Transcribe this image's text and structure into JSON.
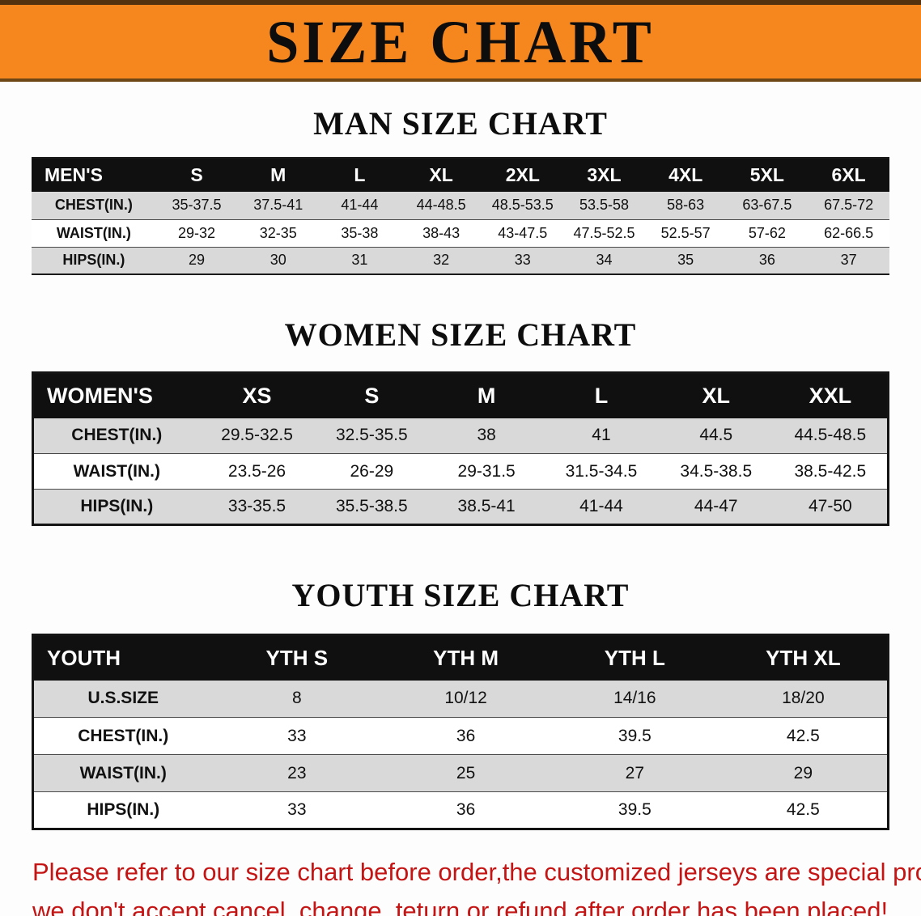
{
  "banner": {
    "title": "SIZE CHART"
  },
  "sections": [
    {
      "heading": "MAN SIZE CHART",
      "table": {
        "header": [
          "MEN'S",
          "S",
          "M",
          "L",
          "XL",
          "2XL",
          "3XL",
          "4XL",
          "5XL",
          "6XL"
        ],
        "rows": [
          {
            "label": "CHEST(IN.)",
            "values": [
              "35-37.5",
              "37.5-41",
              "41-44",
              "44-48.5",
              "48.5-53.5",
              "53.5-58",
              "58-63",
              "63-67.5",
              "67.5-72"
            ]
          },
          {
            "label": "WAIST(IN.)",
            "values": [
              "29-32",
              "32-35",
              "35-38",
              "38-43",
              "43-47.5",
              "47.5-52.5",
              "52.5-57",
              "57-62",
              "62-66.5"
            ]
          },
          {
            "label": "HIPS(IN.)",
            "values": [
              "29",
              "30",
              "31",
              "32",
              "33",
              "34",
              "35",
              "36",
              "37"
            ]
          }
        ]
      }
    },
    {
      "heading": "WOMEN SIZE CHART",
      "table": {
        "header": [
          "WOMEN'S",
          "XS",
          "S",
          "M",
          "L",
          "XL",
          "XXL"
        ],
        "rows": [
          {
            "label": "CHEST(IN.)",
            "values": [
              "29.5-32.5",
              "32.5-35.5",
              "38",
              "41",
              "44.5",
              "44.5-48.5"
            ]
          },
          {
            "label": "WAIST(IN.)",
            "values": [
              "23.5-26",
              "26-29",
              "29-31.5",
              "31.5-34.5",
              "34.5-38.5",
              "38.5-42.5"
            ]
          },
          {
            "label": "HIPS(IN.)",
            "values": [
              "33-35.5",
              "35.5-38.5",
              "38.5-41",
              "41-44",
              "44-47",
              "47-50"
            ]
          }
        ]
      }
    },
    {
      "heading": "YOUTH SIZE CHART",
      "table": {
        "header": [
          "YOUTH",
          "YTH S",
          "YTH M",
          "YTH L",
          "YTH XL"
        ],
        "rows": [
          {
            "label": "U.S.SIZE",
            "values": [
              "8",
              "10/12",
              "14/16",
              "18/20"
            ]
          },
          {
            "label": "CHEST(IN.)",
            "values": [
              "33",
              "36",
              "39.5",
              "42.5"
            ]
          },
          {
            "label": "WAIST(IN.)",
            "values": [
              "23",
              "25",
              "27",
              "29"
            ]
          },
          {
            "label": "HIPS(IN.)",
            "values": [
              "33",
              "36",
              "39.5",
              "42.5"
            ]
          }
        ]
      }
    }
  ],
  "footer": {
    "line1": "Please refer to our size chart before order,the customized jerseys are special products,",
    "line2": "we don't accept cancel, change, teturn or refund after order has been placed!"
  },
  "colors": {
    "banner_orange": "#f6871f",
    "header_black": "#101010",
    "stripe_gray": "#d9d9d9",
    "footer_red": "#c41414"
  }
}
